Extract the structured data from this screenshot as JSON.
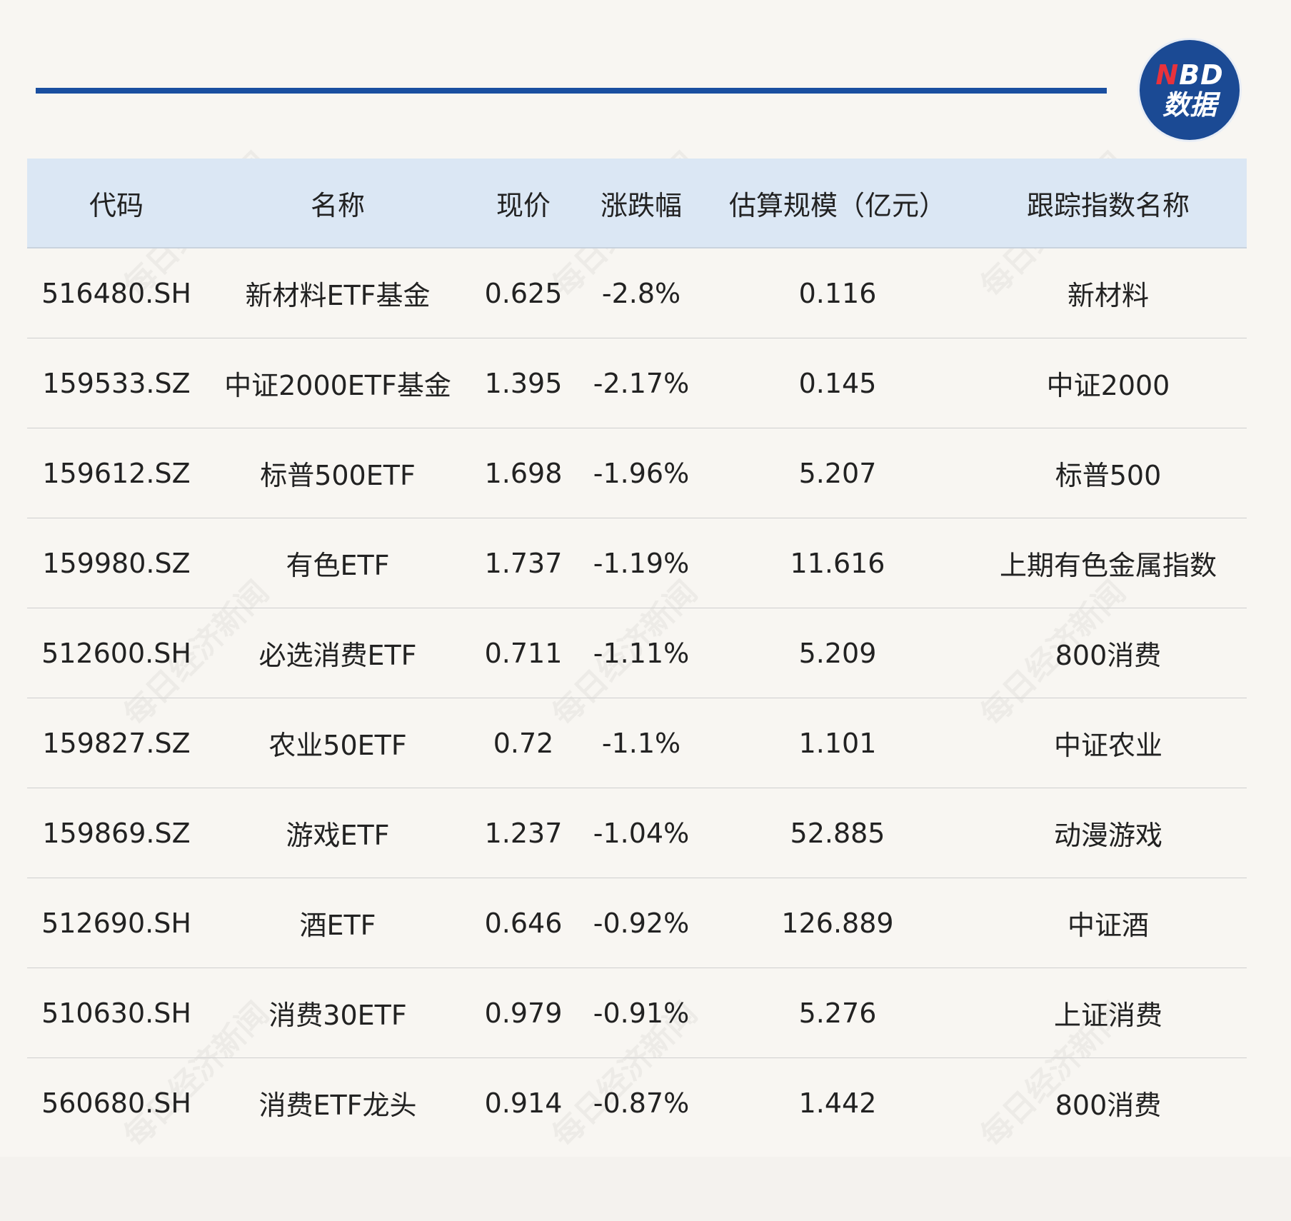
{
  "logo": {
    "line1_n": "N",
    "line1_bd": "BD",
    "line2": "数据"
  },
  "watermark_text": "每日经济新闻",
  "table": {
    "headers": [
      "代码",
      "名称",
      "现价",
      "涨跌幅",
      "估算规模（亿元）",
      "跟踪指数名称"
    ],
    "rows": [
      [
        "516480.SH",
        "新材料ETF基金",
        "0.625",
        "-2.8%",
        "0.116",
        "新材料"
      ],
      [
        "159533.SZ",
        "中证2000ETF基金",
        "1.395",
        "-2.17%",
        "0.145",
        "中证2000"
      ],
      [
        "159612.SZ",
        "标普500ETF",
        "1.698",
        "-1.96%",
        "5.207",
        "标普500"
      ],
      [
        "159980.SZ",
        "有色ETF",
        "1.737",
        "-1.19%",
        "11.616",
        "上期有色金属指数"
      ],
      [
        "512600.SH",
        "必选消费ETF",
        "0.711",
        "-1.11%",
        "5.209",
        "800消费"
      ],
      [
        "159827.SZ",
        "农业50ETF",
        "0.72",
        "-1.1%",
        "1.101",
        "中证农业"
      ],
      [
        "159869.SZ",
        "游戏ETF",
        "1.237",
        "-1.04%",
        "52.885",
        "动漫游戏"
      ],
      [
        "512690.SH",
        "酒ETF",
        "0.646",
        "-0.92%",
        "126.889",
        "中证酒"
      ],
      [
        "510630.SH",
        "消费30ETF",
        "0.979",
        "-0.91%",
        "5.276",
        "上证消费"
      ],
      [
        "560680.SH",
        "消费ETF龙头",
        "0.914",
        "-0.87%",
        "1.442",
        "800消费"
      ]
    ]
  }
}
